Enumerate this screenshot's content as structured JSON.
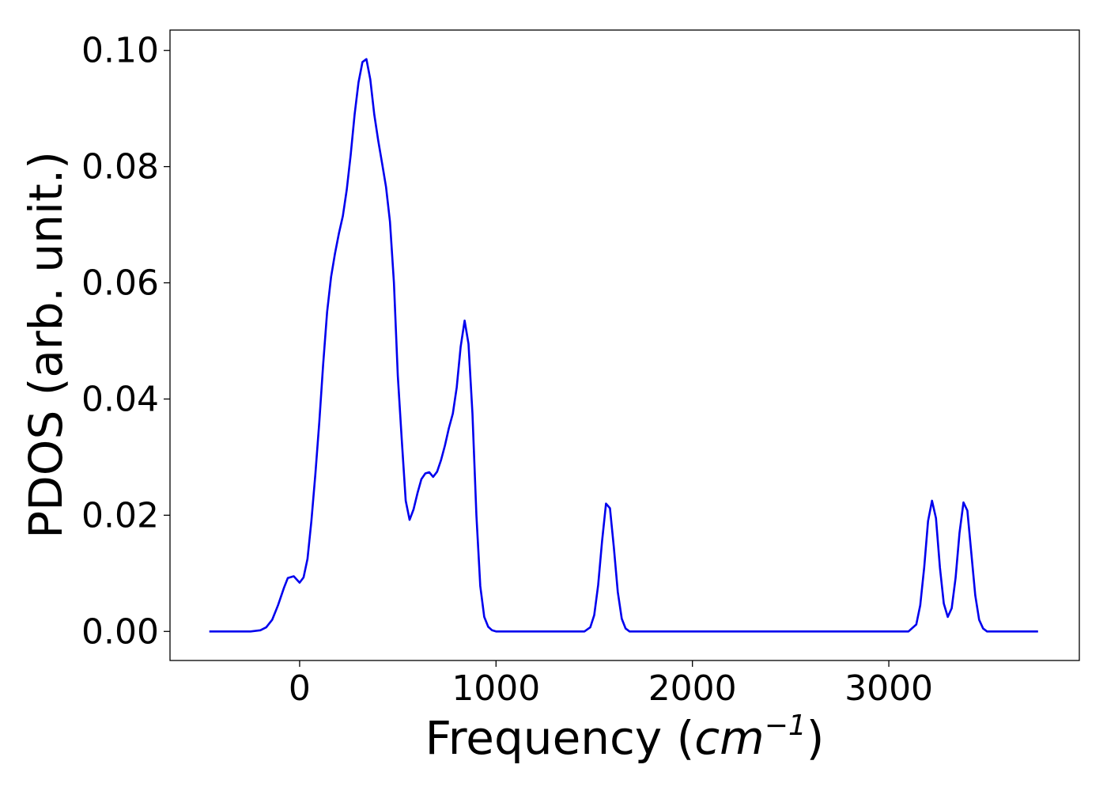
{
  "chart_data": {
    "type": "line",
    "title": "",
    "xlabel": "Frequency (",
    "xlabel_math": "cm",
    "xlabel_exp": "−1",
    "xlabel_close": ")",
    "ylabel": "PDOS (arb. unit.)",
    "xlim": [
      -660,
      3970
    ],
    "ylim": [
      -0.005,
      0.1035
    ],
    "xticks": [
      0,
      1000,
      2000,
      3000
    ],
    "xtick_labels": [
      "0",
      "1000",
      "2000",
      "3000"
    ],
    "yticks": [
      0.0,
      0.02,
      0.04,
      0.06,
      0.08,
      0.1
    ],
    "ytick_labels": [
      "0.00",
      "0.02",
      "0.04",
      "0.06",
      "0.08",
      "0.10"
    ],
    "grid": false,
    "line_color": "#0000ee",
    "series": [
      {
        "x": [
          -460,
          -250,
          -200,
          -170,
          -140,
          -110,
          -80,
          -60,
          -30,
          0,
          20,
          40,
          60,
          80,
          100,
          120,
          140,
          160,
          180,
          200,
          220,
          240,
          260,
          280,
          300,
          320,
          340,
          360,
          380,
          400,
          420,
          440,
          460,
          480,
          500,
          520,
          540,
          560,
          580,
          600,
          620,
          640,
          660,
          680,
          700,
          720,
          740,
          760,
          780,
          800,
          820,
          840,
          860,
          880,
          900,
          920,
          940,
          960,
          980,
          1000,
          1100,
          1200,
          1400,
          1450,
          1480,
          1500,
          1520,
          1540,
          1560,
          1580,
          1600,
          1620,
          1640,
          1660,
          1680,
          1700,
          1800,
          2000,
          2500,
          3000,
          3100,
          3140,
          3160,
          3180,
          3200,
          3220,
          3240,
          3260,
          3280,
          3300,
          3320,
          3340,
          3360,
          3380,
          3400,
          3420,
          3440,
          3460,
          3480,
          3500,
          3520,
          3540,
          3560,
          3600,
          3760
        ],
        "y": [
          0.0,
          0.0,
          0.0002,
          0.0007,
          0.002,
          0.0045,
          0.0075,
          0.0092,
          0.0095,
          0.0084,
          0.0093,
          0.0125,
          0.019,
          0.027,
          0.036,
          0.046,
          0.055,
          0.061,
          0.065,
          0.0685,
          0.0715,
          0.076,
          0.082,
          0.089,
          0.0945,
          0.098,
          0.0985,
          0.095,
          0.089,
          0.0845,
          0.0805,
          0.0765,
          0.0705,
          0.06,
          0.044,
          0.033,
          0.0225,
          0.0192,
          0.021,
          0.0238,
          0.0262,
          0.0272,
          0.0274,
          0.0266,
          0.0275,
          0.0295,
          0.032,
          0.035,
          0.0375,
          0.042,
          0.049,
          0.0535,
          0.0495,
          0.0375,
          0.02,
          0.0078,
          0.0025,
          0.0008,
          0.0002,
          0.0,
          0.0,
          0.0,
          0.0,
          0.0,
          0.0007,
          0.0028,
          0.008,
          0.0155,
          0.022,
          0.0212,
          0.0145,
          0.0068,
          0.0022,
          0.0005,
          0.0,
          0.0,
          0.0,
          0.0,
          0.0,
          0.0,
          0.0,
          0.0012,
          0.0045,
          0.011,
          0.019,
          0.0225,
          0.0195,
          0.011,
          0.0048,
          0.0025,
          0.004,
          0.0092,
          0.017,
          0.0222,
          0.0208,
          0.0135,
          0.0062,
          0.002,
          0.0005,
          0.0,
          0.0,
          0.0,
          0.0,
          0.0,
          0.0
        ]
      }
    ]
  }
}
